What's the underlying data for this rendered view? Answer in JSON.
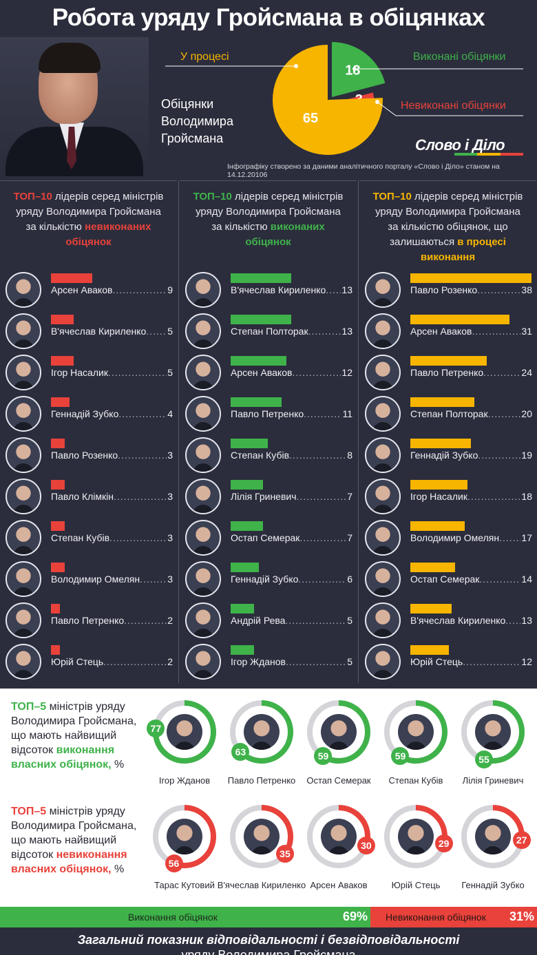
{
  "title": "Робота уряду Гройсмана в обіцянках",
  "promises_label": "Обіцянки Володимира Гройсмана",
  "colors": {
    "green": "#3fb24a",
    "red": "#e8423b",
    "yellow": "#f7b500",
    "bg": "#2b2d3c"
  },
  "pie": {
    "process_label": "У процесі",
    "done_label": "Виконані обіцянки",
    "fail_label": "Невиконані обіцянки"
  },
  "logo": "Слово і Діло",
  "source": "Інфографіку створено за даними аналітичного порталу «Слово і Діло» станом на 14.12.20106",
  "columns": {
    "col1": {
      "pre": "ТОП–10",
      "text": " лідерів серед міністрів уряду Володимира Гройсмана за кількістю ",
      "acc": "невиконаних обіцянок"
    },
    "col2": {
      "pre": "ТОП–10",
      "text": " лідерів серед міністрів уряду Володимира Гройсмана за кількістю ",
      "acc": "виконаних обіцянок"
    },
    "col3": {
      "pre": "ТОП–10",
      "text": " лідерів серед міністрів уряду Володимира Гройсмана за кількістю обіцянок, що залишаються ",
      "acc": "в процесі виконання"
    }
  },
  "top5_done": {
    "pre": "ТОП–5",
    "text1": " міністрів уряду Володимира Гройсмана, що мають найвищий відсоток ",
    "acc": "виконання власних обіцянок,",
    "text2": " %"
  },
  "top5_fail": {
    "pre": "ТОП–5",
    "text1": " міністрів уряду Володимира Гройсмана, що мають найвищий відсоток ",
    "acc": "невиконання власних обіцянок,",
    "text2": " %"
  },
  "bottom": {
    "done_label": "Виконання обіцянок",
    "done_pct": "69%",
    "fail_label": "Невиконання обіцянок",
    "fail_pct": "31%"
  },
  "footer_line1": "Загальний показник відповідальності і безвідповідальності",
  "footer_line2": "уряду Володимира Гройсмана",
  "chart_data": [
    {
      "type": "pie",
      "categories": [
        "У процесі",
        "Виконані обіцянки",
        "Невиконані обіцянки"
      ],
      "values": [
        65,
        18,
        3
      ]
    },
    {
      "type": "bar",
      "title": "ТОП–10 лідерів серед міністрів уряду Володимира Гройсмана за кількістю невиконаних обіцянок",
      "categories": [
        "Арсен Аваков",
        "В'ячеслав Кириленко",
        "Ігор Насалик",
        "Геннадій Зубко",
        "Павло Розенко",
        "Павло Клімкін",
        "Степан Кубів",
        "Володимир Омелян",
        "Павло Петренко",
        "Юрій Стець"
      ],
      "values": [
        9,
        5,
        5,
        4,
        3,
        3,
        3,
        3,
        2,
        2
      ]
    },
    {
      "type": "bar",
      "title": "ТОП–10 лідерів серед міністрів уряду Володимира Гройсмана за кількістю виконаних обіцянок",
      "categories": [
        "В'ячеслав Кириленко",
        "Степан Полторак",
        "Арсен Аваков",
        "Павло Петренко",
        "Степан Кубів",
        "Лілія Гриневич",
        "Остап Семерак",
        "Геннадій Зубко",
        "Андрій Рева",
        "Ігор Жданов"
      ],
      "values": [
        13,
        13,
        12,
        11,
        8,
        7,
        7,
        6,
        5,
        5
      ]
    },
    {
      "type": "bar",
      "title": "ТОП–10 лідерів серед міністрів уряду Володимира Гройсмана за кількістю обіцянок, що залишаються в процесі виконання",
      "categories": [
        "Павло Розенко",
        "Арсен Аваков",
        "Павло Петренко",
        "Степан Полторак",
        "Геннадій Зубко",
        "Ігор Насалик",
        "Володимир Омелян",
        "Остап Семерак",
        "В'ячеслав Кириленко",
        "Юрій Стець"
      ],
      "values": [
        38,
        31,
        24,
        20,
        19,
        18,
        17,
        14,
        13,
        12
      ]
    },
    {
      "type": "pie",
      "categories": [
        "Ігор Жданов",
        "Павло Петренко",
        "Остап Семерак",
        "Степан Кубів",
        "Лілія Гриневич"
      ],
      "values": [
        77,
        63,
        59,
        59,
        55
      ]
    },
    {
      "type": "pie",
      "categories": [
        "Тарас Кутовий",
        "В'ячеслав Кириленко",
        "Арсен Аваков",
        "Юрій Стець",
        "Геннадій Зубко"
      ],
      "values": [
        56,
        35,
        30,
        29,
        27
      ]
    },
    {
      "type": "bar",
      "categories": [
        "Виконання обіцянок",
        "Невиконання обіцянок"
      ],
      "values": [
        69,
        31
      ]
    }
  ]
}
